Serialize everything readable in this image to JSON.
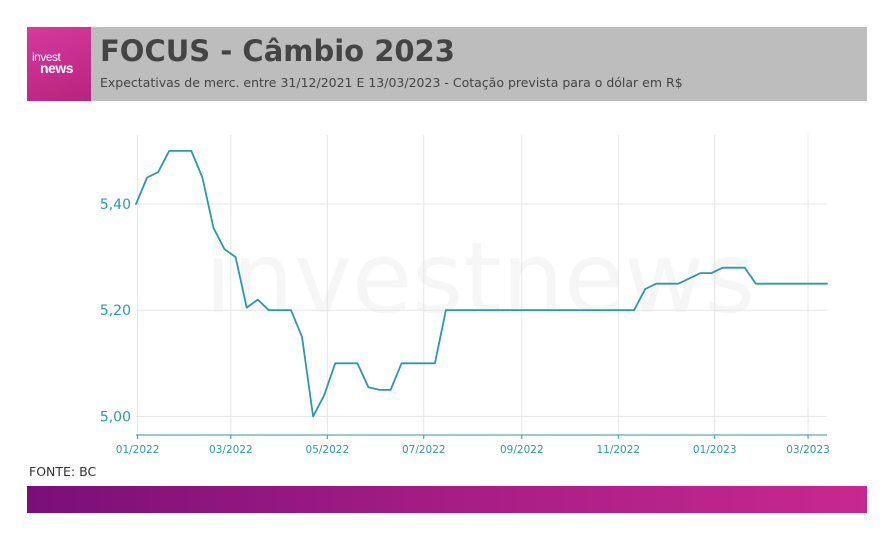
{
  "header": {
    "logo_line1": "invest",
    "logo_line2": "news",
    "title": "FOCUS - Câmbio 2023",
    "subtitle": "Expectativas de merc. entre 31/12/2021 E 13/03/2023 - Cotação prevista para o dólar em R$"
  },
  "watermark": "investnews",
  "source": "FONTE: BC",
  "colors": {
    "line": "#2a9aa6",
    "axis_label": "#2a9aa6",
    "grid": "#e6e6e6",
    "header_bg": "#bdbdbd",
    "logo_bg": "#c92b8c",
    "footer_start": "#7a0f78",
    "footer_end": "#c8288f"
  },
  "chart_data": {
    "type": "line",
    "title": "",
    "xlabel": "",
    "ylabel": "",
    "ylim": [
      4.965,
      5.53
    ],
    "y_ticks": [
      {
        "value": 5.0,
        "label": "5,00"
      },
      {
        "value": 5.2,
        "label": "5,20"
      },
      {
        "value": 5.4,
        "label": "5,40"
      }
    ],
    "x_ticks": [
      "01/2022",
      "03/2022",
      "05/2022",
      "07/2022",
      "09/2022",
      "11/2022",
      "01/2023",
      "03/2023"
    ],
    "x_range": [
      "2021-12-31",
      "2023-03-13"
    ],
    "grid": true,
    "series": [
      {
        "values": [
          [
            "2021-12-31",
            5.4
          ],
          [
            "2022-01-07",
            5.45
          ],
          [
            "2022-01-14",
            5.46
          ],
          [
            "2022-01-21",
            5.5
          ],
          [
            "2022-01-28",
            5.5
          ],
          [
            "2022-02-04",
            5.5
          ],
          [
            "2022-02-11",
            5.45
          ],
          [
            "2022-02-18",
            5.355
          ],
          [
            "2022-02-25",
            5.315
          ],
          [
            "2022-03-04",
            5.3
          ],
          [
            "2022-03-11",
            5.205
          ],
          [
            "2022-03-18",
            5.22
          ],
          [
            "2022-03-25",
            5.2
          ],
          [
            "2022-04-01",
            5.2
          ],
          [
            "2022-04-08",
            5.2
          ],
          [
            "2022-04-15",
            5.15
          ],
          [
            "2022-04-22",
            5.0
          ],
          [
            "2022-04-29",
            5.04
          ],
          [
            "2022-05-06",
            5.1
          ],
          [
            "2022-05-13",
            5.1
          ],
          [
            "2022-05-20",
            5.1
          ],
          [
            "2022-05-27",
            5.055
          ],
          [
            "2022-06-03",
            5.05
          ],
          [
            "2022-06-10",
            5.05
          ],
          [
            "2022-06-17",
            5.1
          ],
          [
            "2022-06-24",
            5.1
          ],
          [
            "2022-07-01",
            5.1
          ],
          [
            "2022-07-08",
            5.1
          ],
          [
            "2022-07-15",
            5.2
          ],
          [
            "2022-07-22",
            5.2
          ],
          [
            "2022-07-29",
            5.2
          ],
          [
            "2022-08-26",
            5.2
          ],
          [
            "2022-09-30",
            5.2
          ],
          [
            "2022-10-28",
            5.2
          ],
          [
            "2022-11-11",
            5.2
          ],
          [
            "2022-11-18",
            5.24
          ],
          [
            "2022-11-25",
            5.25
          ],
          [
            "2022-12-02",
            5.25
          ],
          [
            "2022-12-09",
            5.25
          ],
          [
            "2022-12-16",
            5.26
          ],
          [
            "2022-12-23",
            5.27
          ],
          [
            "2022-12-30",
            5.27
          ],
          [
            "2023-01-06",
            5.28
          ],
          [
            "2023-01-13",
            5.28
          ],
          [
            "2023-01-20",
            5.28
          ],
          [
            "2023-01-27",
            5.25
          ],
          [
            "2023-02-03",
            5.25
          ],
          [
            "2023-02-10",
            5.25
          ],
          [
            "2023-02-17",
            5.25
          ],
          [
            "2023-02-24",
            5.25
          ],
          [
            "2023-03-03",
            5.25
          ],
          [
            "2023-03-13",
            5.25
          ]
        ]
      }
    ]
  }
}
